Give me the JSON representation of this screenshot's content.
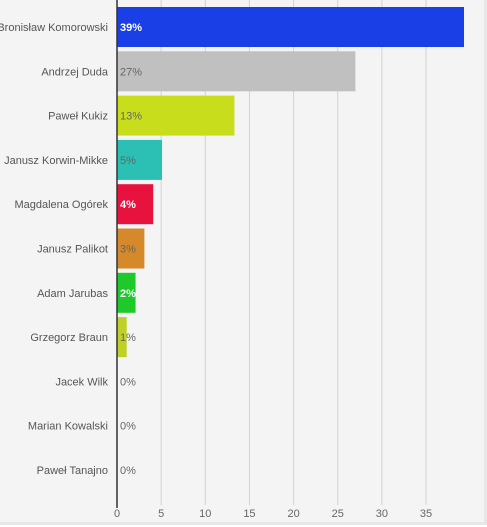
{
  "chart_data": {
    "type": "bar",
    "orientation": "horizontal",
    "title": "",
    "xlabel": "",
    "ylabel": "",
    "categories": [
      "Bronisław Komorowski",
      "Andrzej Duda",
      "Paweł Kukiz",
      "Janusz Korwin-Mikke",
      "Magdalena Ogórek",
      "Janusz Palikot",
      "Adam Jarubas",
      "Grzegorz Braun",
      "Jacek Wilk",
      "Marian Kowalski",
      "Paweł Tanajno"
    ],
    "values": [
      39.3,
      27.0,
      13.3,
      5.1,
      4.1,
      3.1,
      2.1,
      1.1,
      0.0,
      0.0,
      0.0
    ],
    "data_labels": [
      "39%",
      "27%",
      "13%",
      "5%",
      "4%",
      "3%",
      "2%",
      "1%",
      "0%",
      "0%",
      "0%"
    ],
    "colors": [
      "#1a3fe6",
      "#c0c0c0",
      "#c8de1c",
      "#2cbfb4",
      "#e8123f",
      "#d6892a",
      "#1ec92a",
      "#bfd127",
      "#bfbfbf",
      "#bfbfbf",
      "#bfbfbf"
    ],
    "label_colors": [
      "#ffffff",
      "#666666",
      "#666666",
      "#666666",
      "#ffffff",
      "#666666",
      "#ffffff",
      "#666666",
      "#666666",
      "#666666",
      "#666666"
    ],
    "x_ticks": [
      0,
      5,
      10,
      15,
      20,
      25,
      30,
      35
    ],
    "xlim": [
      0,
      39.3
    ],
    "grid": true,
    "legend": "none"
  }
}
